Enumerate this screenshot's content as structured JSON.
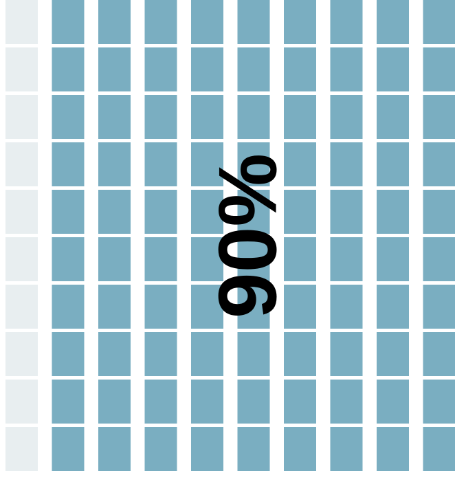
{
  "chart_data": {
    "type": "waffle",
    "value": 90,
    "value_label": "90%",
    "color": "#7aaec1",
    "empty_color": "#e8eef0"
  }
}
